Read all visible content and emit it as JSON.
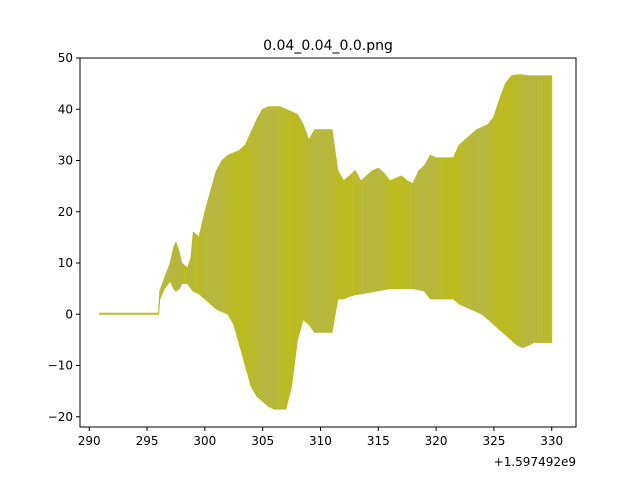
{
  "chart_data": {
    "type": "area",
    "title": "0.04_0.04_0.0.png",
    "xlabel": "",
    "ylabel": "",
    "x_offset_label": "+1.597492e9",
    "xlim": [
      289.2,
      332.1
    ],
    "ylim": [
      -22,
      50
    ],
    "x_ticks": [
      290,
      295,
      300,
      305,
      310,
      315,
      320,
      325,
      330
    ],
    "x_tick_labels": [
      "290",
      "295",
      "300",
      "305",
      "310",
      "315",
      "320",
      "325",
      "330"
    ],
    "y_ticks": [
      -20,
      -10,
      0,
      10,
      20,
      30,
      40,
      50
    ],
    "y_tick_labels": [
      "−20",
      "−10",
      "0",
      "10",
      "20",
      "30",
      "40",
      "50"
    ],
    "grid": false,
    "colors": {
      "fill": "#bcbd22",
      "line": "#9aa0a0"
    },
    "series": [
      {
        "x": [
          290.9,
          296.0,
          296.1,
          296.5,
          297.0,
          297.3,
          297.5,
          297.8,
          298.0,
          298.5,
          298.8,
          299.0,
          299.5,
          300.0,
          300.5,
          301.0,
          301.5,
          302.0,
          302.5,
          303.0,
          303.5,
          304.0,
          304.5,
          305.0,
          305.5,
          306.0,
          306.5,
          307.0,
          307.5,
          308.0,
          308.5,
          309.0,
          309.5,
          310.0,
          310.5,
          311.0,
          311.5,
          312.0,
          312.5,
          313.0,
          313.5,
          314.0,
          314.5,
          315.0,
          315.5,
          316.0,
          316.5,
          317.0,
          317.5,
          318.0,
          318.5,
          319.0,
          319.5,
          320.0,
          320.5,
          321.0,
          321.5,
          322.0,
          322.5,
          323.0,
          323.5,
          324.0,
          324.5,
          325.0,
          325.5,
          326.0,
          326.5,
          327.0,
          327.5,
          328.0,
          328.5,
          329.0,
          329.5,
          330.0
        ],
        "upper": [
          0.2,
          0.2,
          4.5,
          7.0,
          10.0,
          13.0,
          14.0,
          12.0,
          10.0,
          9.0,
          11.0,
          16.0,
          15.0,
          20.0,
          24.0,
          28.0,
          30.0,
          31.0,
          31.5,
          32.0,
          33.0,
          35.5,
          38.0,
          40.0,
          40.5,
          40.5,
          40.5,
          40.0,
          39.5,
          39.0,
          37.0,
          34.0,
          36.0,
          36.0,
          36.0,
          36.0,
          28.0,
          26.0,
          27.0,
          28.0,
          26.0,
          27.0,
          28.0,
          28.5,
          27.5,
          26.0,
          26.5,
          27.0,
          26.0,
          25.5,
          28.0,
          29.0,
          31.0,
          30.5,
          30.5,
          30.5,
          30.5,
          33.0,
          34.0,
          35.0,
          36.0,
          36.5,
          37.0,
          38.5,
          42.0,
          45.0,
          46.5,
          46.7,
          46.7,
          46.5,
          46.5,
          46.5,
          46.5,
          46.5
        ],
        "lower": [
          0.0,
          0.0,
          3.0,
          5.0,
          6.5,
          5.0,
          4.5,
          5.0,
          6.0,
          6.0,
          5.0,
          4.5,
          4.0,
          3.0,
          2.0,
          1.0,
          0.5,
          0.0,
          -2.0,
          -6.0,
          -10.0,
          -14.0,
          -16.0,
          -17.0,
          -18.0,
          -18.5,
          -18.5,
          -18.5,
          -14.0,
          -5.0,
          -1.0,
          -2.0,
          -3.5,
          -3.5,
          -3.5,
          -3.5,
          3.0,
          3.0,
          3.5,
          3.8,
          4.0,
          4.2,
          4.4,
          4.6,
          4.8,
          5.0,
          5.0,
          5.0,
          5.0,
          5.0,
          4.8,
          4.5,
          3.0,
          3.0,
          3.0,
          3.0,
          3.0,
          2.0,
          1.5,
          1.0,
          0.5,
          0.0,
          -1.0,
          -2.0,
          -3.0,
          -4.0,
          -5.0,
          -6.0,
          -6.5,
          -6.0,
          -5.5,
          -5.5,
          -5.5,
          -5.5
        ]
      }
    ]
  }
}
